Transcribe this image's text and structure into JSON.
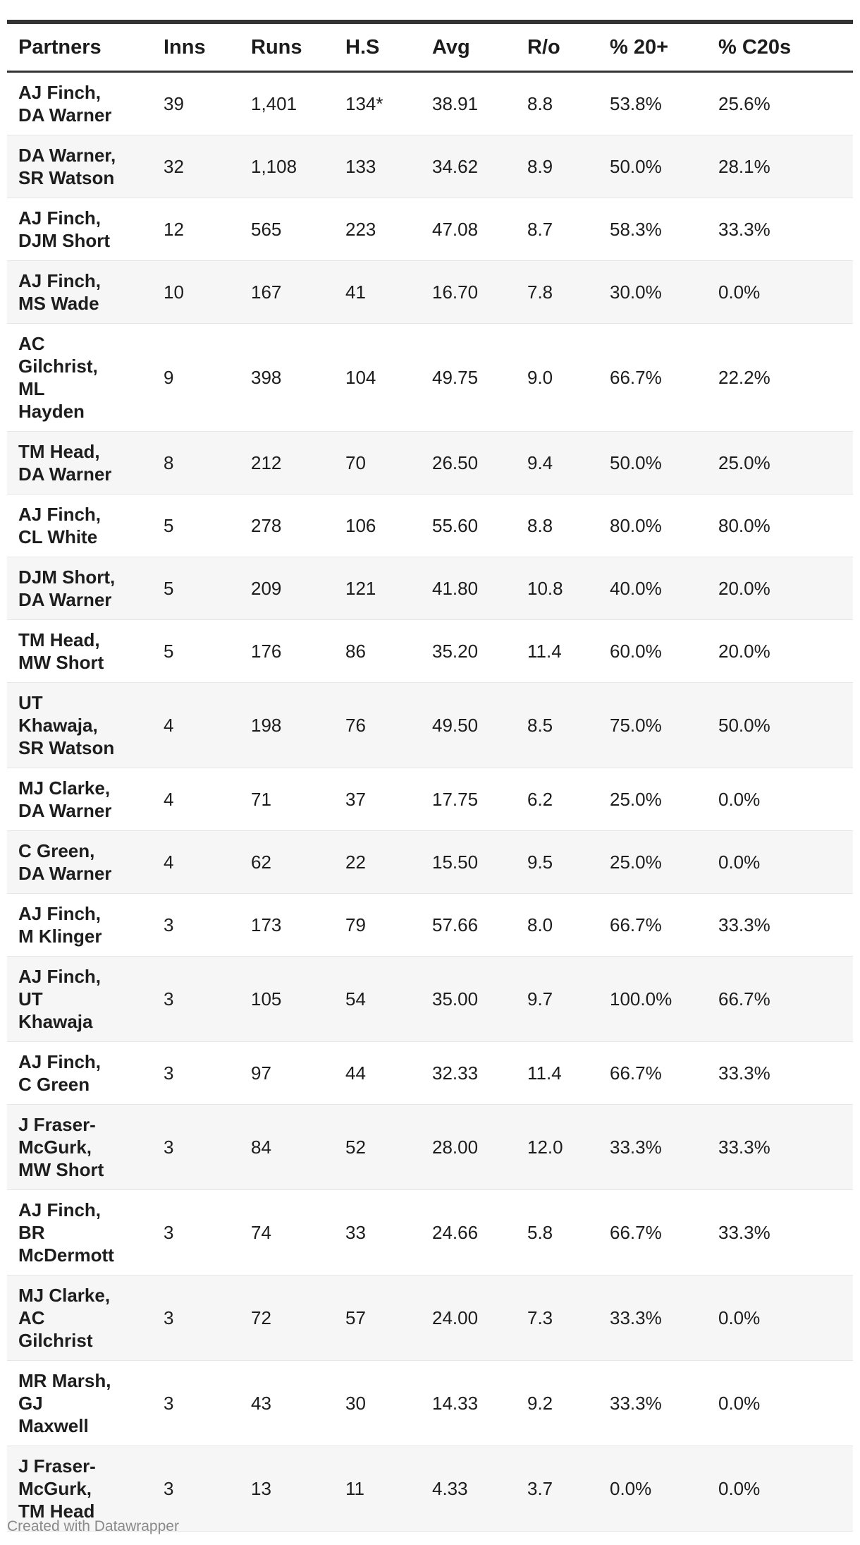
{
  "chart_data": {
    "type": "table",
    "columns": [
      "Partners",
      "Inns",
      "Runs",
      "H.S",
      "Avg",
      "R/o",
      "% 20+",
      "% C20s"
    ],
    "rows": [
      {
        "partners": [
          "AJ Finch,",
          "DA Warner"
        ],
        "inns": "39",
        "runs": "1,401",
        "hs": "134*",
        "avg": "38.91",
        "ro": "8.8",
        "p20": "53.8%",
        "c20": "25.6%"
      },
      {
        "partners": [
          "DA Warner,",
          "SR Watson"
        ],
        "inns": "32",
        "runs": "1,108",
        "hs": "133",
        "avg": "34.62",
        "ro": "8.9",
        "p20": "50.0%",
        "c20": "28.1%"
      },
      {
        "partners": [
          "AJ Finch,",
          "DJM Short"
        ],
        "inns": "12",
        "runs": "565",
        "hs": "223",
        "avg": "47.08",
        "ro": "8.7",
        "p20": "58.3%",
        "c20": "33.3%"
      },
      {
        "partners": [
          "AJ Finch,",
          "MS Wade"
        ],
        "inns": "10",
        "runs": "167",
        "hs": "41",
        "avg": "16.70",
        "ro": "7.8",
        "p20": "30.0%",
        "c20": "0.0%"
      },
      {
        "partners": [
          "AC",
          "Gilchrist,",
          "ML",
          "Hayden"
        ],
        "inns": "9",
        "runs": "398",
        "hs": "104",
        "avg": "49.75",
        "ro": "9.0",
        "p20": "66.7%",
        "c20": "22.2%"
      },
      {
        "partners": [
          "TM Head,",
          "DA Warner"
        ],
        "inns": "8",
        "runs": "212",
        "hs": "70",
        "avg": "26.50",
        "ro": "9.4",
        "p20": "50.0%",
        "c20": "25.0%"
      },
      {
        "partners": [
          "AJ Finch,",
          "CL White"
        ],
        "inns": "5",
        "runs": "278",
        "hs": "106",
        "avg": "55.60",
        "ro": "8.8",
        "p20": "80.0%",
        "c20": "80.0%"
      },
      {
        "partners": [
          "DJM Short,",
          "DA Warner"
        ],
        "inns": "5",
        "runs": "209",
        "hs": "121",
        "avg": "41.80",
        "ro": "10.8",
        "p20": "40.0%",
        "c20": "20.0%"
      },
      {
        "partners": [
          "TM Head,",
          "MW Short"
        ],
        "inns": "5",
        "runs": "176",
        "hs": "86",
        "avg": "35.20",
        "ro": "11.4",
        "p20": "60.0%",
        "c20": "20.0%"
      },
      {
        "partners": [
          "UT",
          "Khawaja,",
          "SR Watson"
        ],
        "inns": "4",
        "runs": "198",
        "hs": "76",
        "avg": "49.50",
        "ro": "8.5",
        "p20": "75.0%",
        "c20": "50.0%"
      },
      {
        "partners": [
          "MJ Clarke,",
          "DA Warner"
        ],
        "inns": "4",
        "runs": "71",
        "hs": "37",
        "avg": "17.75",
        "ro": "6.2",
        "p20": "25.0%",
        "c20": "0.0%"
      },
      {
        "partners": [
          "C Green,",
          "DA Warner"
        ],
        "inns": "4",
        "runs": "62",
        "hs": "22",
        "avg": "15.50",
        "ro": "9.5",
        "p20": "25.0%",
        "c20": "0.0%"
      },
      {
        "partners": [
          "AJ Finch,",
          "M Klinger"
        ],
        "inns": "3",
        "runs": "173",
        "hs": "79",
        "avg": "57.66",
        "ro": "8.0",
        "p20": "66.7%",
        "c20": "33.3%"
      },
      {
        "partners": [
          "AJ Finch,",
          "UT",
          "Khawaja"
        ],
        "inns": "3",
        "runs": "105",
        "hs": "54",
        "avg": "35.00",
        "ro": "9.7",
        "p20": "100.0%",
        "c20": "66.7%"
      },
      {
        "partners": [
          "AJ Finch,",
          "C Green"
        ],
        "inns": "3",
        "runs": "97",
        "hs": "44",
        "avg": "32.33",
        "ro": "11.4",
        "p20": "66.7%",
        "c20": "33.3%"
      },
      {
        "partners": [
          "J Fraser-",
          "McGurk,",
          "MW Short"
        ],
        "inns": "3",
        "runs": "84",
        "hs": "52",
        "avg": "28.00",
        "ro": "12.0",
        "p20": "33.3%",
        "c20": "33.3%"
      },
      {
        "partners": [
          "AJ Finch,",
          "BR",
          "McDermott"
        ],
        "inns": "3",
        "runs": "74",
        "hs": "33",
        "avg": "24.66",
        "ro": "5.8",
        "p20": "66.7%",
        "c20": "33.3%"
      },
      {
        "partners": [
          "MJ Clarke,",
          "AC",
          "Gilchrist"
        ],
        "inns": "3",
        "runs": "72",
        "hs": "57",
        "avg": "24.00",
        "ro": "7.3",
        "p20": "33.3%",
        "c20": "0.0%"
      },
      {
        "partners": [
          "MR Marsh,",
          "GJ",
          "Maxwell"
        ],
        "inns": "3",
        "runs": "43",
        "hs": "30",
        "avg": "14.33",
        "ro": "9.2",
        "p20": "33.3%",
        "c20": "0.0%"
      },
      {
        "partners": [
          "J Fraser-",
          "McGurk,",
          "TM Head"
        ],
        "inns": "3",
        "runs": "13",
        "hs": "11",
        "avg": "4.33",
        "ro": "3.7",
        "p20": "0.0%",
        "c20": "0.0%"
      }
    ]
  },
  "footer": {
    "credit": "Created with Datawrapper"
  }
}
